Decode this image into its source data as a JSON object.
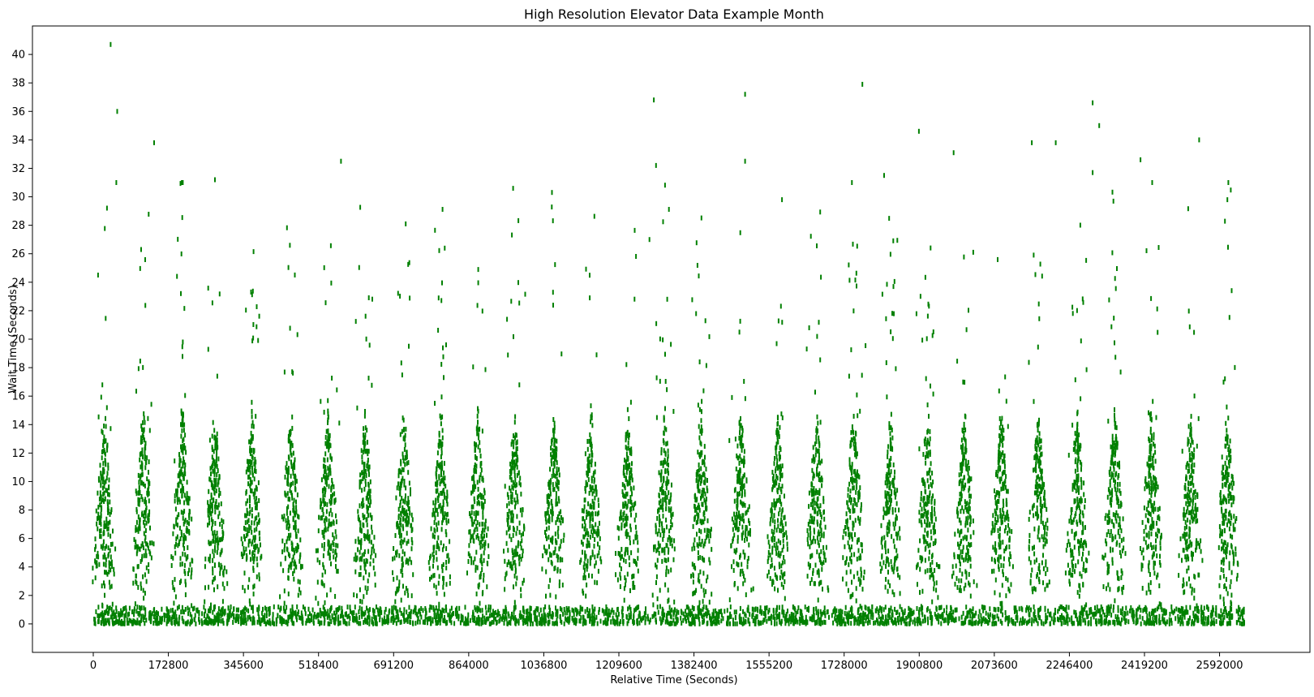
{
  "chart_data": {
    "type": "scatter",
    "title": "High Resolution Elevator Data Example Month",
    "xlabel": "Relative Time (Seconds)",
    "ylabel": "Wait Time (Seconds)",
    "xlim": [
      -140000,
      2800000
    ],
    "ylim": [
      -2,
      42
    ],
    "xticks": [
      0,
      172800,
      345600,
      518400,
      691200,
      864000,
      1036800,
      1209600,
      1382400,
      1555200,
      1728000,
      1900800,
      2073600,
      2246400,
      2419200,
      2592000
    ],
    "yticks": [
      0,
      2,
      4,
      6,
      8,
      10,
      12,
      14,
      16,
      18,
      20,
      22,
      24,
      26,
      28,
      30,
      32,
      34,
      36,
      38,
      40
    ],
    "grid": false,
    "marker": "vertical-line",
    "color": "#008000",
    "period_seconds": 86400,
    "data_range_seconds": [
      0,
      2650000
    ],
    "daily_peak_centers_seconds": [
      25000,
      115000,
      205000,
      280000,
      365000,
      455000,
      540000,
      625000,
      715000,
      800000,
      885000,
      970000,
      1060000,
      1145000,
      1230000,
      1315000,
      1400000,
      1490000,
      1575000,
      1665000,
      1750000,
      1835000,
      1920000,
      2005000,
      2090000,
      2175000,
      2265000,
      2350000,
      2435000,
      2525000,
      2610000
    ],
    "highlight_points": [
      {
        "x": 40000,
        "y": 40.7
      },
      {
        "x": 55000,
        "y": 36.0
      },
      {
        "x": 53000,
        "y": 31.0
      },
      {
        "x": 140000,
        "y": 33.8
      },
      {
        "x": 280000,
        "y": 31.2
      },
      {
        "x": 570000,
        "y": 32.5
      },
      {
        "x": 1290000,
        "y": 36.8
      },
      {
        "x": 1295000,
        "y": 32.2
      },
      {
        "x": 1500000,
        "y": 37.2
      },
      {
        "x": 1500000,
        "y": 32.5
      },
      {
        "x": 1770000,
        "y": 37.9
      },
      {
        "x": 1820000,
        "y": 31.5
      },
      {
        "x": 1900000,
        "y": 34.6
      },
      {
        "x": 1980000,
        "y": 33.1
      },
      {
        "x": 2160000,
        "y": 33.8
      },
      {
        "x": 2215000,
        "y": 33.8
      },
      {
        "x": 2300000,
        "y": 36.6
      },
      {
        "x": 2315000,
        "y": 35.0
      },
      {
        "x": 2300000,
        "y": 31.7
      },
      {
        "x": 2410000,
        "y": 32.6
      },
      {
        "x": 2545000,
        "y": 34.0
      },
      {
        "x": 1280000,
        "y": 27.0
      },
      {
        "x": 1585000,
        "y": 29.8
      },
      {
        "x": 2610000,
        "y": 29.8
      }
    ]
  }
}
